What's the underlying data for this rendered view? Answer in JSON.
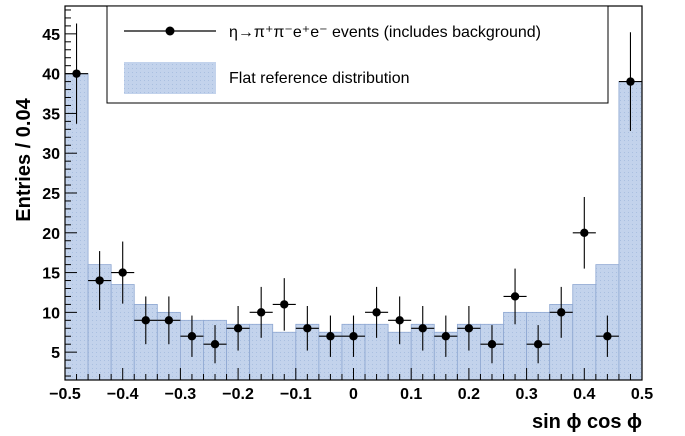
{
  "chart_data": {
    "type": "bar",
    "xlabel": "sin ϕ cos ϕ",
    "ylabel": "Entries / 0.04",
    "xlim": [
      -0.5,
      0.5
    ],
    "ylim": [
      1.5,
      48.5
    ],
    "x_ticks": [
      "−0.5",
      "−0.4",
      "−0.3",
      "−0.2",
      "−0.1",
      "0",
      "0.1",
      "0.2",
      "0.3",
      "0.4",
      "0.5"
    ],
    "y_ticks": [
      "5",
      "10",
      "15",
      "20",
      "25",
      "30",
      "35",
      "40",
      "45"
    ],
    "legend_position": "top",
    "bin_width": 0.04,
    "series": [
      {
        "name": "η→π⁺π⁻e⁺e⁻ events (includes background)",
        "kind": "points-with-errors",
        "color": "#000000",
        "x": [
          -0.48,
          -0.44,
          -0.4,
          -0.36,
          -0.32,
          -0.28,
          -0.24,
          -0.2,
          -0.16,
          -0.12,
          -0.08,
          -0.04,
          0.0,
          0.04,
          0.08,
          0.12,
          0.16,
          0.2,
          0.24,
          0.28,
          0.32,
          0.36,
          0.4,
          0.44,
          0.48
        ],
        "y": [
          40,
          14,
          15,
          9,
          9,
          7,
          6,
          8,
          10,
          11,
          8,
          7,
          7,
          10,
          9,
          8,
          7,
          8,
          6,
          12,
          6,
          10,
          20,
          7,
          39
        ],
        "y_err": [
          6.3,
          3.7,
          3.9,
          3.0,
          3.0,
          2.6,
          2.4,
          2.8,
          3.2,
          3.3,
          2.8,
          2.6,
          2.6,
          3.2,
          3.0,
          2.8,
          2.6,
          2.8,
          2.4,
          3.5,
          2.4,
          3.2,
          4.5,
          2.6,
          6.2
        ]
      },
      {
        "name": "Flat reference distribution",
        "kind": "filled-histogram",
        "color": "#b7c9e6",
        "x_edges": [
          -0.5,
          -0.46,
          -0.42,
          -0.38,
          -0.34,
          -0.3,
          -0.26,
          -0.22,
          -0.18,
          -0.14,
          -0.1,
          -0.06,
          -0.02,
          0.02,
          0.06,
          0.1,
          0.14,
          0.18,
          0.22,
          0.26,
          0.3,
          0.34,
          0.38,
          0.42,
          0.46,
          0.5
        ],
        "values": [
          40,
          16,
          13.5,
          11,
          10,
          9,
          9,
          8.5,
          8.5,
          7.5,
          8.5,
          7.5,
          8.5,
          8.5,
          7.5,
          8.5,
          7.5,
          8.5,
          8.5,
          10,
          10,
          11,
          13.5,
          16,
          39
        ]
      }
    ]
  }
}
